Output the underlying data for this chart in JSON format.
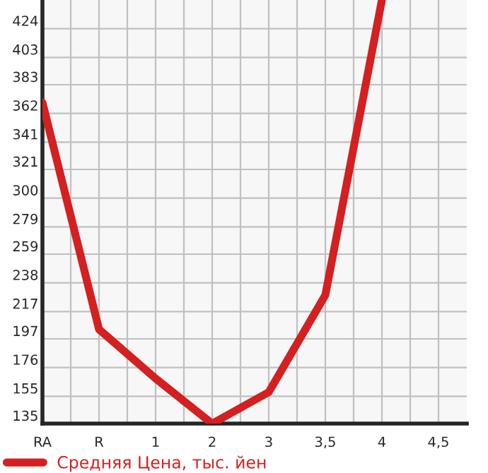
{
  "chart_data": {
    "type": "line",
    "categories": [
      "RA",
      "R",
      "1",
      "2",
      "3",
      "3,5",
      "4",
      "4,5"
    ],
    "series": [
      {
        "name": "Средняя Цена, тыс. йен",
        "color": "#d42020",
        "values": [
          370,
          204,
          168,
          135,
          158,
          229,
          445,
          null
        ]
      }
    ],
    "ylim": [
      135,
      445
    ],
    "yticks": [
      135,
      155,
      176,
      197,
      217,
      238,
      259,
      279,
      300,
      321,
      341,
      362,
      383,
      403,
      424
    ],
    "grid": true,
    "legend": "bottom",
    "marker": "none",
    "line_style": "solid"
  }
}
